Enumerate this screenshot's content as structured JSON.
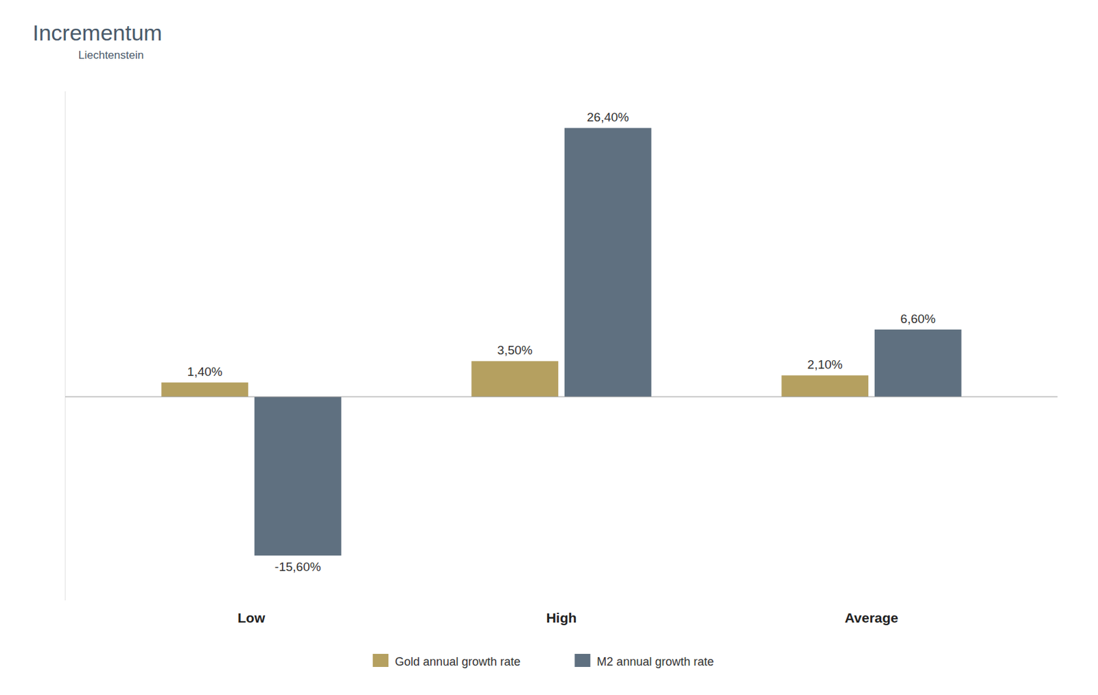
{
  "chart_data": {
    "type": "bar",
    "categories": [
      "Low",
      "High",
      "Average"
    ],
    "series": [
      {
        "name": "Gold annual growth rate",
        "color": "#b5a060",
        "values": [
          1.4,
          3.5,
          2.1
        ],
        "value_labels": [
          "1,40%",
          "3,50%",
          "2,10%"
        ]
      },
      {
        "name": "M2 annual growth rate",
        "color": "#5f7080",
        "values": [
          -15.6,
          26.4,
          6.6
        ],
        "value_labels": [
          "-15,60%",
          "26,40%",
          "6,60%"
        ]
      }
    ],
    "ylim": [
      -20,
      30
    ],
    "grid": false,
    "legend": "bottom",
    "data_labels": true,
    "tick_labels": "x",
    "annotations": [
      "Incrementum",
      "Liechtenstein"
    ]
  }
}
